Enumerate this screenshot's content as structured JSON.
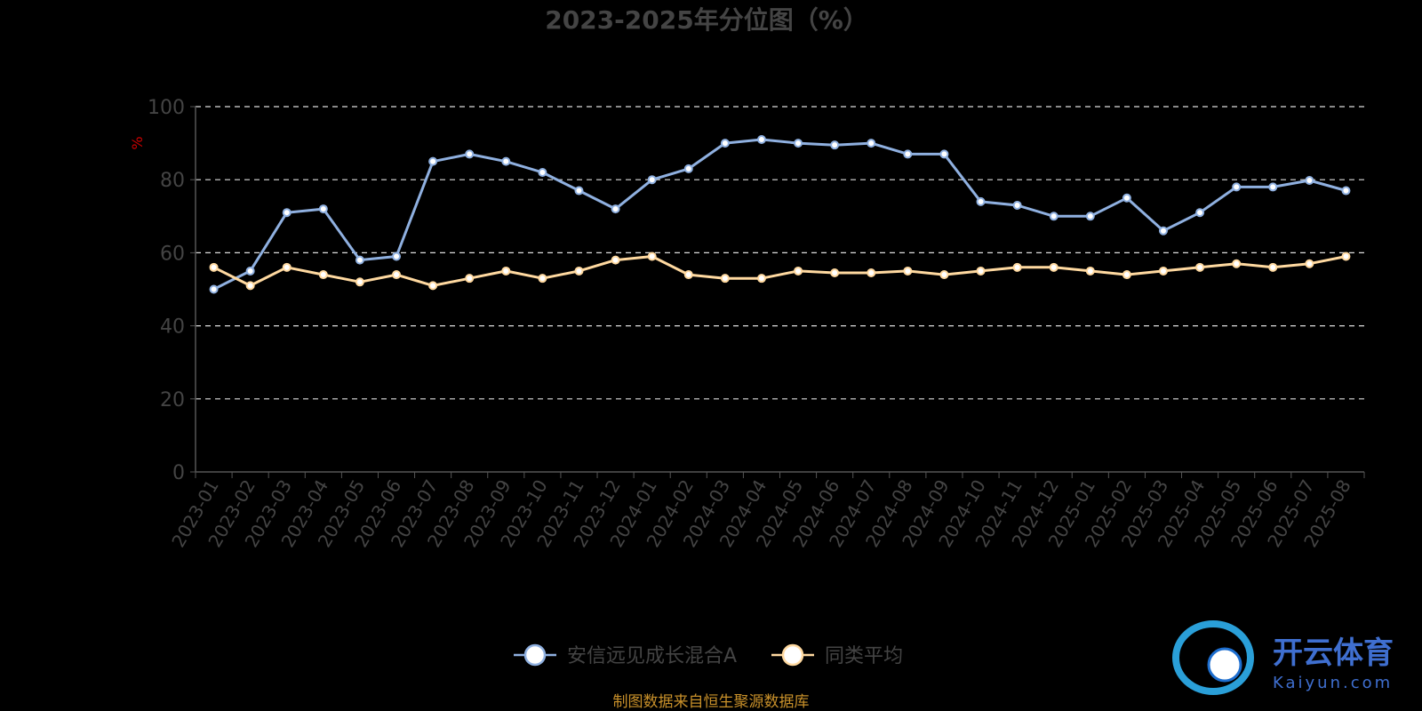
{
  "chart_data": {
    "type": "line",
    "title": "2023-2025年分位图（%）",
    "ylabel": "%",
    "ylim": [
      0,
      100
    ],
    "yticks": [
      "0",
      "20",
      "40",
      "60",
      "80",
      "100"
    ],
    "grid": true,
    "legend_position": "bottom-center",
    "categories": [
      "2023-01",
      "2023-02",
      "2023-03",
      "2023-04",
      "2023-05",
      "2023-06",
      "2023-07",
      "2023-08",
      "2023-09",
      "2023-10",
      "2023-11",
      "2023-12",
      "2024-01",
      "2024-02",
      "2024-03",
      "2024-04",
      "2024-05",
      "2024-06",
      "2024-07",
      "2024-08",
      "2024-09",
      "2024-10",
      "2024-11",
      "2024-12",
      "2025-01",
      "2025-02",
      "2025-03",
      "2025-04",
      "2025-05",
      "2025-06",
      "2025-07",
      "2025-08"
    ],
    "series": [
      {
        "name": "安信远见成长混合A",
        "color": "#8fb0e0",
        "values": [
          50,
          55,
          71,
          72,
          58,
          59,
          85,
          87,
          85,
          82,
          77,
          72,
          80,
          83,
          90,
          91,
          90,
          89.5,
          90,
          87,
          87,
          74,
          73,
          70,
          70,
          75,
          66,
          71,
          78,
          78,
          79.8,
          77
        ]
      },
      {
        "name": "同类平均",
        "color": "#ffd9a0",
        "values": [
          56,
          51,
          56,
          54,
          52,
          54,
          51,
          53,
          55,
          53,
          55,
          58,
          59,
          54,
          53,
          53,
          55,
          54.5,
          54.5,
          55,
          54,
          55,
          56,
          56,
          55,
          54,
          55,
          56,
          57,
          56,
          57,
          59
        ]
      }
    ]
  },
  "source_text": "制图数据来自恒生聚源数据库",
  "watermark": {
    "brand_cn": "开云体育",
    "brand_en": "Kaiyun.com"
  }
}
